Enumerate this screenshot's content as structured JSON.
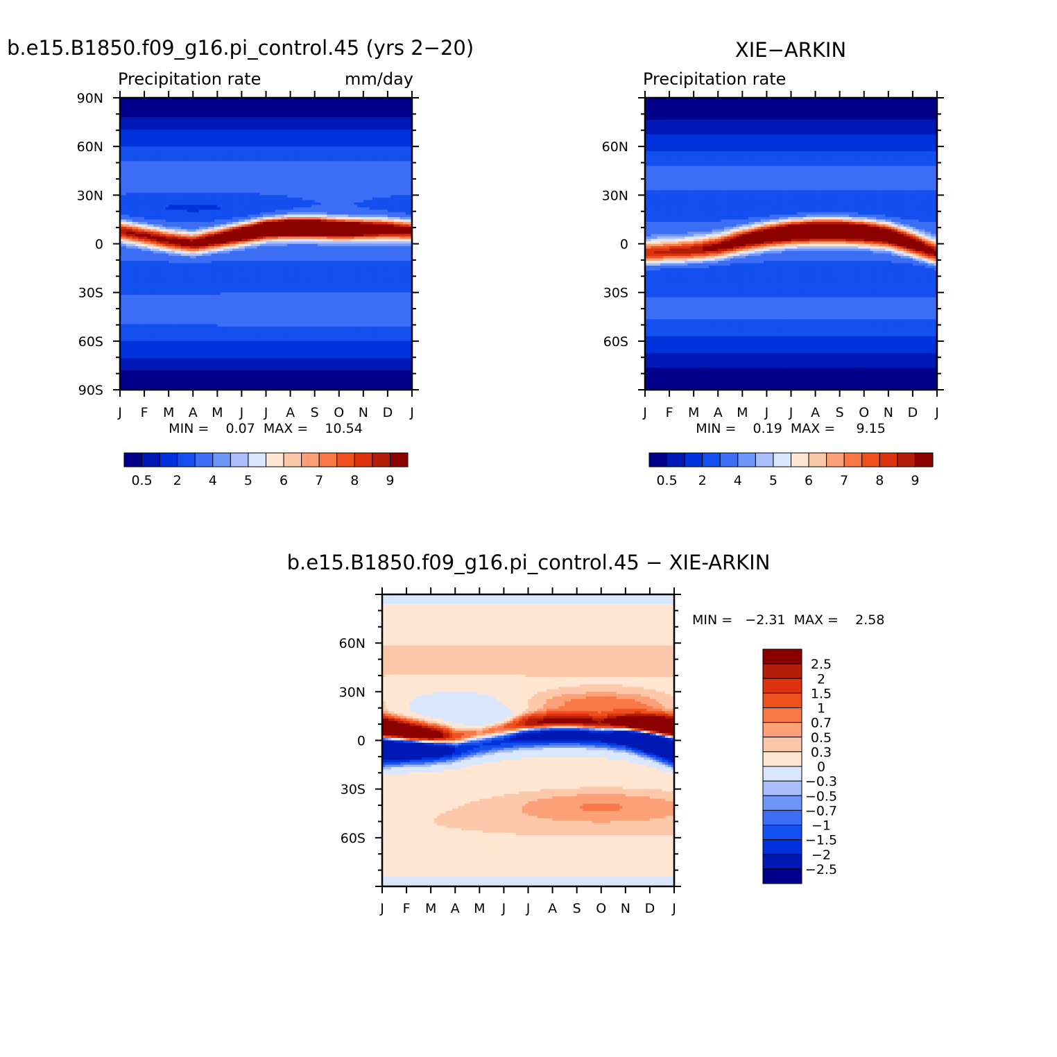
{
  "panel_model": {
    "title": "b.e15.B1850.f09_g16.pi_control.45 (yrs 2-20)",
    "subtitle_left": "Precipitation rate",
    "subtitle_right": "mm/day",
    "stats": "MIN =    0.07  MAX =    10.54"
  },
  "panel_obs": {
    "title": "XIE-ARKIN",
    "subtitle_left": "Precipitation rate",
    "subtitle_right": "",
    "stats": "MIN =    0.19  MAX =     9.15"
  },
  "panel_diff": {
    "title": "b.e15.B1850.f09_g16.pi_control.45 - XIE-ARKIN",
    "stats": "MIN =   -2.31  MAX =    2.58"
  },
  "months": [
    "J",
    "F",
    "M",
    "A",
    "M",
    "J",
    "J",
    "A",
    "S",
    "O",
    "N",
    "D",
    "J"
  ],
  "lat_labels_full": [
    "90N",
    "60N",
    "30N",
    "0",
    "30S",
    "60S",
    "90S"
  ],
  "lat_labels_obs": [
    "60N",
    "30N",
    "0",
    "30S",
    "60S"
  ],
  "abs_levels_labels": [
    "0.5",
    "2",
    "4",
    "5",
    "6",
    "7",
    "8",
    "9"
  ],
  "abs_colors": [
    "#00008c",
    "#0019b4",
    "#0032dc",
    "#1450f0",
    "#3c6ef5",
    "#6e96fa",
    "#aabefd",
    "#d8e6fe",
    "#fee6d2",
    "#fdc8aa",
    "#fca078",
    "#fa7846",
    "#f0501e",
    "#dc3210",
    "#b41e08",
    "#8c0000"
  ],
  "diff_levels_labels": [
    "2.5",
    "2",
    "1.5",
    "1",
    "0.7",
    "0.5",
    "0.3",
    "0",
    "-0.3",
    "-0.5",
    "-0.7",
    "-1",
    "-1.5",
    "-2",
    "-2.5"
  ],
  "diff_colors": [
    "#8c0000",
    "#b41e08",
    "#dc3210",
    "#f0501e",
    "#fa7846",
    "#fca078",
    "#fdc8aa",
    "#fee6d2",
    "#d8e6fe",
    "#aabefd",
    "#6e96fa",
    "#3c6ef5",
    "#1450f0",
    "#0032dc",
    "#0019b4",
    "#00008c"
  ],
  "chart_data": [
    {
      "type": "heatmap",
      "title": "b.e15.B1850.f09_g16.pi_control.45 (yrs 2-20)",
      "subtitle": "Precipitation rate",
      "units": "mm/day",
      "x": [
        "J",
        "F",
        "M",
        "A",
        "M",
        "J",
        "J",
        "A",
        "S",
        "O",
        "N",
        "D",
        "J"
      ],
      "y": [
        "90N",
        "60N",
        "30N",
        "0",
        "30S",
        "60S",
        "90S"
      ],
      "ylim": [
        -90,
        90
      ],
      "min": 0.07,
      "max": 10.54,
      "colorbar_levels": [
        0.5,
        2,
        4,
        5,
        6,
        7,
        8,
        9
      ],
      "features": {
        "itcz_max_lat_by_month": [
          8,
          5,
          2,
          0,
          3,
          6,
          9,
          10,
          10,
          9,
          9,
          9,
          8
        ],
        "itcz_peak_value": 10.5
      }
    },
    {
      "type": "heatmap",
      "title": "XIE-ARKIN",
      "subtitle": "Precipitation rate",
      "x": [
        "J",
        "F",
        "M",
        "A",
        "M",
        "J",
        "J",
        "A",
        "S",
        "O",
        "N",
        "D",
        "J"
      ],
      "y": [
        "60N",
        "30N",
        "0",
        "30S",
        "60S"
      ],
      "ylim": [
        -90,
        90
      ],
      "min": 0.19,
      "max": 9.15,
      "colorbar_levels": [
        0.5,
        2,
        4,
        5,
        6,
        7,
        8,
        9
      ],
      "features": {
        "itcz_max_lat_by_month": [
          -6,
          -5,
          -4,
          -2,
          2,
          5,
          7,
          8,
          8,
          7,
          5,
          0,
          -6
        ],
        "itcz_peak_value": 9.1
      }
    },
    {
      "type": "heatmap",
      "title": "b.e15.B1850.f09_g16.pi_control.45 - XIE-ARKIN",
      "x": [
        "J",
        "F",
        "M",
        "A",
        "M",
        "J",
        "J",
        "A",
        "S",
        "O",
        "N",
        "D",
        "J"
      ],
      "y": [
        "60N",
        "30N",
        "0",
        "30S",
        "60S"
      ],
      "ylim": [
        -90,
        90
      ],
      "min": -2.31,
      "max": 2.58,
      "colorbar_levels": [
        2.5,
        2,
        1.5,
        1,
        0.7,
        0.5,
        0.3,
        0,
        -0.3,
        -0.5,
        -0.7,
        -1,
        -1.5,
        -2,
        -2.5
      ]
    }
  ]
}
